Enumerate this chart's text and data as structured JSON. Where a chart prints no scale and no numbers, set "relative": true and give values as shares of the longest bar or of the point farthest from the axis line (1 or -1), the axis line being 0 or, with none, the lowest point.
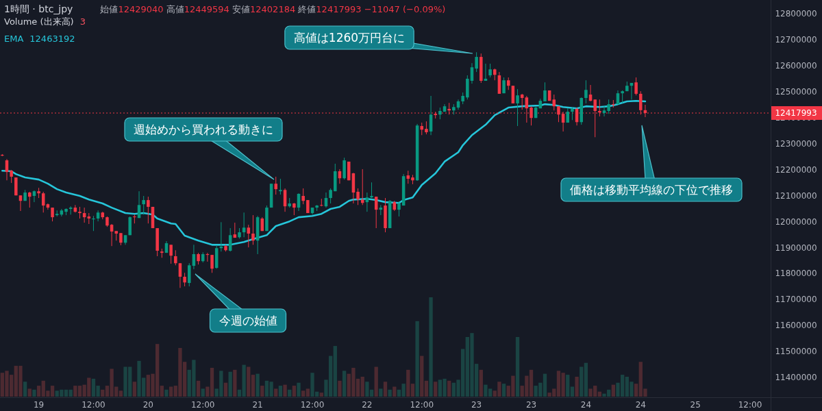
{
  "chart_data": [
    {
      "type": "candlestick",
      "title": "1時間 · btc_jpy",
      "subtitle": "始値12429040 高値12449594 安値12402184 終値12417993 −11047 (−0.09%)",
      "legend": "top left",
      "ylim": [
        11324000,
        12853000
      ],
      "yticks": [
        11400000,
        11500000,
        11600000,
        11700000,
        11800000,
        11900000,
        12000000,
        12100000,
        12200000,
        12300000,
        12400000,
        12500000,
        12600000,
        12700000,
        12800000
      ],
      "categories": [
        null,
        null,
        null,
        null,
        null,
        null,
        null,
        null,
        "19",
        null,
        null,
        null,
        null,
        null,
        null,
        null,
        null,
        null,
        null,
        null,
        "12:00",
        null,
        null,
        null,
        null,
        null,
        null,
        null,
        null,
        null,
        null,
        null,
        "20",
        null,
        null,
        null,
        null,
        null,
        null,
        null,
        null,
        null,
        null,
        null,
        "12:00",
        null,
        null,
        null,
        null,
        null,
        null,
        null,
        null,
        null,
        null,
        null,
        "21",
        null,
        null,
        null,
        null,
        null,
        null,
        null,
        null,
        null,
        null,
        null,
        "12:00",
        null,
        null,
        null,
        null,
        null,
        null,
        null,
        null,
        null,
        null,
        null,
        "22",
        null,
        null,
        null,
        null,
        null,
        null,
        null,
        null,
        null,
        null,
        null,
        "12:00",
        null,
        null,
        null,
        null,
        null,
        null,
        null,
        null,
        null,
        null,
        null,
        "23",
        null,
        null,
        null,
        null,
        null,
        null,
        null,
        null,
        null,
        null,
        null,
        "23",
        null,
        null,
        null,
        null,
        null,
        null,
        null,
        null,
        null,
        null,
        null,
        "24",
        null,
        null,
        null,
        null,
        null,
        null,
        null,
        null,
        null,
        null,
        null,
        "24",
        null,
        null,
        null,
        null,
        null,
        null,
        null,
        null,
        null,
        null,
        null,
        "25",
        null,
        null,
        null,
        null,
        null,
        null,
        null,
        null,
        null,
        null,
        null,
        "12:00",
        null,
        null,
        null,
        null
      ],
      "ohlc": [
        [
          12257000,
          12260000,
          12252000,
          12254000
        ],
        [
          12236000,
          12241000,
          12159000,
          12191000
        ],
        [
          12196000,
          12199000,
          12149000,
          12173000
        ],
        [
          12170000,
          12170000,
          12101000,
          12101000
        ],
        [
          12101000,
          12101000,
          12041000,
          12080000
        ],
        [
          12080000,
          12122000,
          12080000,
          12112000
        ],
        [
          12112000,
          12115000,
          12054000,
          12096000
        ],
        [
          12099000,
          12120000,
          12075000,
          12117000
        ],
        [
          12117000,
          12130000,
          12091000,
          12109000
        ],
        [
          12109000,
          12115000,
          12035000,
          12062000
        ],
        [
          12067000,
          12070000,
          12046000,
          12054000
        ],
        [
          12054000,
          12054000,
          12001000,
          12017000
        ],
        [
          12025000,
          12043000,
          12020000,
          12030000
        ],
        [
          12027000,
          12049000,
          12020000,
          12043000
        ],
        [
          12038000,
          12051000,
          12025000,
          12049000
        ],
        [
          12049000,
          12059000,
          12027000,
          12054000
        ],
        [
          12054000,
          12064000,
          12035000,
          12038000
        ],
        [
          12038000,
          12057000,
          12012000,
          12033000
        ],
        [
          12033000,
          12054000,
          11996000,
          12017000
        ],
        [
          12020000,
          12033000,
          11991000,
          12012000
        ],
        [
          12009000,
          12022000,
          11964000,
          12012000
        ],
        [
          12012000,
          12043000,
          12001000,
          12035000
        ],
        [
          12035000,
          12038000,
          12009000,
          12017000
        ],
        [
          12017000,
          12020000,
          11980000,
          11985000
        ],
        [
          11988000,
          11991000,
          11906000,
          11962000
        ],
        [
          11964000,
          11964000,
          11927000,
          11954000
        ],
        [
          11956000,
          11956000,
          11909000,
          11919000
        ],
        [
          11919000,
          11948000,
          11911000,
          11948000
        ],
        [
          11948000,
          12020000,
          11948000,
          12017000
        ],
        [
          12020000,
          12027000,
          11993000,
          12017000
        ],
        [
          12014000,
          12117000,
          12014000,
          12064000
        ],
        [
          12067000,
          12099000,
          12027000,
          12083000
        ],
        [
          12083000,
          12096000,
          11993000,
          12057000
        ],
        [
          12057000,
          12057000,
          11975000,
          11975000
        ],
        [
          11975000,
          11975000,
          11867000,
          11888000
        ],
        [
          11885000,
          11896000,
          11861000,
          11880000
        ],
        [
          11880000,
          11925000,
          11880000,
          11917000
        ],
        [
          11911000,
          11911000,
          11838000,
          11869000
        ],
        [
          11867000,
          11890000,
          11832000,
          11840000
        ],
        [
          11840000,
          11840000,
          11745000,
          11788000
        ],
        [
          11788000,
          11803000,
          11751000,
          11766000
        ],
        [
          11764000,
          11840000,
          11751000,
          11832000
        ],
        [
          11830000,
          11911000,
          11817000,
          11875000
        ],
        [
          11875000,
          11880000,
          11835000,
          11848000
        ],
        [
          11848000,
          11882000,
          11843000,
          11875000
        ],
        [
          11875000,
          11880000,
          11846000,
          11872000
        ],
        [
          11872000,
          11872000,
          11803000,
          11819000
        ],
        [
          11822000,
          11909000,
          11819000,
          11898000
        ],
        [
          11898000,
          11998000,
          11885000,
          11904000
        ],
        [
          11906000,
          11911000,
          11885000,
          11890000
        ],
        [
          11888000,
          11975000,
          11885000,
          11948000
        ],
        [
          11951000,
          11996000,
          11938000,
          11938000
        ],
        [
          11940000,
          11975000,
          11935000,
          11959000
        ],
        [
          11959000,
          12035000,
          11940000,
          11977000
        ],
        [
          11977000,
          11988000,
          11901000,
          11954000
        ],
        [
          11954000,
          12025000,
          11911000,
          11927000
        ],
        [
          11927000,
          12022000,
          11875000,
          12017000
        ],
        [
          12012000,
          12017000,
          11964000,
          11964000
        ],
        [
          11964000,
          12062000,
          11964000,
          12054000
        ],
        [
          12054000,
          12146000,
          12054000,
          12146000
        ],
        [
          12146000,
          12173000,
          12104000,
          12125000
        ],
        [
          12117000,
          12165000,
          12104000,
          12122000
        ],
        [
          12122000,
          12128000,
          12038000,
          12059000
        ],
        [
          12059000,
          12091000,
          12054000,
          12070000
        ],
        [
          12070000,
          12072000,
          12025000,
          12054000
        ],
        [
          12054000,
          12109000,
          12041000,
          12107000
        ],
        [
          12099000,
          12128000,
          12067000,
          12080000
        ],
        [
          12083000,
          12083000,
          12033000,
          12033000
        ],
        [
          12033000,
          12054000,
          12027000,
          12054000
        ],
        [
          12054000,
          12064000,
          12041000,
          12062000
        ],
        [
          12064000,
          12088000,
          12059000,
          12062000
        ],
        [
          12059000,
          12112000,
          12054000,
          12091000
        ],
        [
          12091000,
          12128000,
          12070000,
          12122000
        ],
        [
          12117000,
          12223000,
          12117000,
          12194000
        ],
        [
          12194000,
          12202000,
          12146000,
          12167000
        ],
        [
          12167000,
          12246000,
          12162000,
          12236000
        ],
        [
          12231000,
          12231000,
          12159000,
          12159000
        ],
        [
          12186000,
          12188000,
          12070000,
          12112000
        ],
        [
          12115000,
          12128000,
          12064000,
          12085000
        ],
        [
          12085000,
          12202000,
          12064000,
          12072000
        ],
        [
          12075000,
          12112000,
          12038000,
          12093000
        ],
        [
          12093000,
          12151000,
          12091000,
          12099000
        ],
        [
          12096000,
          12096000,
          11975000,
          12046000
        ],
        [
          12046000,
          12064000,
          12025000,
          12054000
        ],
        [
          12062000,
          12091000,
          11959000,
          11975000
        ],
        [
          11975000,
          12083000,
          11975000,
          12080000
        ],
        [
          12075000,
          12080000,
          12041000,
          12046000
        ],
        [
          12046000,
          12078000,
          12020000,
          12070000
        ],
        [
          12062000,
          12183000,
          12062000,
          12175000
        ],
        [
          12178000,
          12196000,
          12146000,
          12165000
        ],
        [
          12170000,
          12180000,
          12144000,
          12159000
        ],
        [
          12159000,
          12376000,
          12157000,
          12370000
        ],
        [
          12368000,
          12381000,
          12333000,
          12354000
        ],
        [
          12357000,
          12386000,
          12336000,
          12344000
        ],
        [
          12347000,
          12484000,
          12333000,
          12412000
        ],
        [
          12415000,
          12423000,
          12397000,
          12410000
        ],
        [
          12412000,
          12439000,
          12394000,
          12426000
        ],
        [
          12423000,
          12452000,
          12423000,
          12444000
        ],
        [
          12434000,
          12457000,
          12412000,
          12428000
        ],
        [
          12428000,
          12452000,
          12412000,
          12441000
        ],
        [
          12439000,
          12470000,
          12431000,
          12463000
        ],
        [
          12463000,
          12497000,
          12452000,
          12484000
        ],
        [
          12478000,
          12563000,
          12470000,
          12550000
        ],
        [
          12542000,
          12610000,
          12531000,
          12594000
        ],
        [
          12589000,
          12652000,
          12576000,
          12634000
        ],
        [
          12634000,
          12647000,
          12534000,
          12542000
        ],
        [
          12542000,
          12608000,
          12542000,
          12550000
        ],
        [
          12563000,
          12608000,
          12555000,
          12586000
        ],
        [
          12586000,
          12589000,
          12544000,
          12565000
        ],
        [
          12563000,
          12576000,
          12492000,
          12492000
        ],
        [
          12494000,
          12555000,
          12494000,
          12544000
        ],
        [
          12544000,
          12555000,
          12507000,
          12523000
        ],
        [
          12523000,
          12523000,
          12455000,
          12455000
        ],
        [
          12455000,
          12510000,
          12368000,
          12486000
        ],
        [
          12489000,
          12492000,
          12431000,
          12476000
        ],
        [
          12478000,
          12484000,
          12381000,
          12436000
        ],
        [
          12439000,
          12444000,
          12370000,
          12399000
        ],
        [
          12399000,
          12444000,
          12399000,
          12439000
        ],
        [
          12436000,
          12473000,
          12436000,
          12465000
        ],
        [
          12463000,
          12536000,
          12463000,
          12505000
        ],
        [
          12505000,
          12505000,
          12465000,
          12465000
        ],
        [
          12470000,
          12489000,
          12428000,
          12444000
        ],
        [
          12444000,
          12444000,
          12383000,
          12412000
        ],
        [
          12415000,
          12423000,
          12347000,
          12381000
        ],
        [
          12381000,
          12436000,
          12381000,
          12423000
        ],
        [
          12423000,
          12439000,
          12391000,
          12434000
        ],
        [
          12434000,
          12439000,
          12370000,
          12383000
        ],
        [
          12383000,
          12478000,
          12373000,
          12476000
        ],
        [
          12476000,
          12544000,
          12455000,
          12507000
        ],
        [
          12489000,
          12526000,
          12463000,
          12465000
        ],
        [
          12470000,
          12470000,
          12325000,
          12426000
        ],
        [
          12426000,
          12470000,
          12405000,
          12420000
        ],
        [
          12418000,
          12444000,
          12405000,
          12428000
        ],
        [
          12426000,
          12470000,
          12415000,
          12452000
        ],
        [
          12452000,
          12468000,
          12439000,
          12449000
        ],
        [
          12452000,
          12505000,
          12452000,
          12494000
        ],
        [
          12494000,
          12505000,
          12457000,
          12502000
        ],
        [
          12502000,
          12539000,
          12502000,
          12523000
        ],
        [
          12523000,
          12534000,
          12470000,
          12534000
        ],
        [
          12536000,
          12555000,
          12486000,
          12492000
        ],
        [
          12492000,
          12502000,
          12412000,
          12429000
        ],
        [
          12429040,
          12449594,
          12402184,
          12417993
        ],
        null,
        null,
        null,
        null,
        null,
        null,
        null,
        null,
        null,
        null,
        null,
        null,
        null,
        null,
        null,
        null,
        null,
        null,
        null,
        null,
        null,
        null,
        null,
        null,
        null,
        null,
        null
      ],
      "colors": [
        "#f23645",
        "#f23645",
        "#f23645",
        "#f23645",
        "#f23645",
        "#089981",
        "#f23645",
        "#089981",
        "#f23645",
        "#f23645",
        "#f23645",
        "#f23645",
        "#089981",
        "#089981",
        "#089981",
        "#089981",
        "#f23645",
        "#f23645",
        "#f23645",
        "#f23645",
        "#089981",
        "#089981",
        "#f23645",
        "#f23645",
        "#f23645",
        "#f23645",
        "#f23645",
        "#089981",
        "#089981",
        "#f23645",
        "#089981",
        "#089981",
        "#f23645",
        "#f23645",
        "#f23645",
        "#f23645",
        "#089981",
        "#f23645",
        "#f23645",
        "#f23645",
        "#f23645",
        "#089981",
        "#089981",
        "#f23645",
        "#089981",
        "#f23645",
        "#f23645",
        "#089981",
        "#089981",
        "#f23645",
        "#089981",
        "#f23645",
        "#089981",
        "#089981",
        "#f23645",
        "#f23645",
        "#089981",
        "#f23645",
        "#089981",
        "#089981",
        "#f23645",
        "#089981",
        "#f23645",
        "#089981",
        "#f23645",
        "#089981",
        "#f23645",
        "#f23645",
        "#089981",
        "#089981",
        "#f23645",
        "#089981",
        "#089981",
        "#089981",
        "#f23645",
        "#089981",
        "#f23645",
        "#f23645",
        "#f23645",
        "#f23645",
        "#089981",
        "#089981",
        "#f23645",
        "#089981",
        "#f23645",
        "#089981",
        "#f23645",
        "#089981",
        "#089981",
        "#f23645",
        "#f23645",
        "#089981",
        "#f23645",
        "#f23645",
        "#089981",
        "#f23645",
        "#089981",
        "#089981",
        "#f23645",
        "#089981",
        "#089981",
        "#089981",
        "#089981",
        "#089981",
        "#089981",
        "#f23645",
        "#089981",
        "#089981",
        "#f23645",
        "#f23645",
        "#089981",
        "#f23645",
        "#f23645",
        "#089981",
        "#f23645",
        "#f23645",
        "#f23645",
        "#089981",
        "#089981",
        "#089981",
        "#f23645",
        "#f23645",
        "#f23645",
        "#f23645",
        "#089981",
        "#089981",
        "#f23645",
        "#089981",
        "#089981",
        "#f23645",
        "#f23645",
        "#f23645",
        "#089981",
        "#089981",
        "#f23645",
        "#089981",
        "#089981",
        "#089981",
        "#089981",
        "#f23645",
        "#f23645",
        "#f23645",
        null,
        null,
        null,
        null,
        null,
        null,
        null,
        null,
        null,
        null,
        null,
        null,
        null,
        null,
        null,
        null,
        null,
        null,
        null,
        null,
        null,
        null,
        null,
        null,
        null,
        null,
        null
      ],
      "series": [
        {
          "type": "line",
          "name": "EMA",
          "color": "#26c6da",
          "values": [
            12196000,
            null,
            12194000,
            12183000,
            null,
            12170000,
            null,
            null,
            12162000,
            null,
            12146000,
            null,
            12125000,
            null,
            12112000,
            null,
            null,
            12099000,
            null,
            12085000,
            null,
            null,
            12070000,
            null,
            12054000,
            null,
            null,
            12033000,
            null,
            12030000,
            null,
            12033000,
            null,
            12027000,
            12012000,
            null,
            null,
            11993000,
            11991000,
            null,
            11946000,
            null,
            null,
            11927000,
            null,
            null,
            11911000,
            null,
            11911000,
            null,
            11911000,
            null,
            null,
            11922000,
            null,
            11933000,
            null,
            null,
            11948000,
            null,
            11983000,
            null,
            null,
            12001000,
            null,
            12017000,
            null,
            null,
            12022000,
            null,
            12030000,
            null,
            12049000,
            null,
            12057000,
            null,
            12080000,
            12085000,
            null,
            null,
            12088000,
            null,
            12083000,
            null,
            12075000,
            null,
            null,
            12072000,
            12083000,
            null,
            12093000,
            null,
            12141000,
            null,
            null,
            12186000,
            null,
            12231000,
            null,
            null,
            12267000,
            12294000,
            null,
            12333000,
            null,
            null,
            12373000,
            null,
            12410000,
            null,
            null,
            12439000,
            null,
            null,
            12444000,
            null,
            null,
            null,
            12447000,
            12452000,
            null,
            12449000,
            null,
            12441000,
            null,
            null,
            12436000,
            null,
            12444000,
            null,
            null,
            12441000,
            null,
            12444000,
            null,
            12452000,
            null,
            12463000,
            null,
            12465000,
            null,
            12463000,
            null,
            null,
            null,
            null,
            null,
            null,
            null,
            null,
            null,
            null,
            null,
            null,
            null,
            null,
            null,
            null,
            null,
            null,
            null,
            null,
            null,
            null,
            null,
            null,
            null,
            null,
            null
          ]
        }
      ],
      "ref_lines": [
        {
          "axis": "y",
          "value": 12417993,
          "label": "12417993",
          "color": "#f23645",
          "line_style": "dotted"
        }
      ],
      "annotations": [
        "12463192",
        "高値は1260万円台に",
        "週始めから買われる動きに",
        "今週の始値",
        "価格は移動平均線の下位で推移"
      ]
    },
    {
      "type": "bar",
      "relative": true,
      "legend": "top left",
      "categories": [
        null,
        null,
        null,
        null,
        null,
        null,
        null,
        null,
        null,
        null,
        null,
        null,
        null,
        null,
        null,
        null,
        null,
        null,
        null,
        null,
        null,
        null,
        null,
        null,
        null,
        null,
        null,
        null,
        null,
        null,
        null,
        null,
        null,
        null,
        null,
        null,
        null,
        null,
        null,
        null,
        null,
        null,
        null,
        null,
        null,
        null,
        null,
        null,
        null,
        null,
        null,
        null,
        null,
        null,
        null,
        null,
        null,
        null,
        null,
        null,
        null,
        null,
        null,
        null,
        null,
        null,
        null,
        null,
        null,
        null,
        null,
        null,
        null,
        null,
        null,
        null,
        null,
        null,
        null,
        null,
        null,
        null,
        null,
        null,
        null,
        null,
        null,
        null,
        null,
        null,
        null,
        null,
        null,
        null,
        null,
        null,
        null,
        null,
        null,
        null,
        null,
        null,
        null,
        null,
        null,
        null,
        null,
        null,
        null,
        null,
        null,
        null,
        null,
        null,
        null,
        null,
        null,
        null,
        null,
        null,
        null,
        null,
        null,
        null,
        null,
        null,
        null,
        null,
        null,
        null,
        null,
        null,
        null,
        null,
        null,
        null,
        null,
        null,
        null,
        null,
        null,
        null,
        null,
        null,
        null,
        null,
        null,
        null,
        null,
        null,
        null,
        null,
        null,
        null,
        null,
        null,
        null,
        null,
        null,
        null,
        null,
        null,
        null,
        null,
        null,
        null,
        null,
        null,
        null
      ],
      "series": [
        {
          "name": "Volume (出来高)",
          "values": [
            0.24,
            0.26,
            0.22,
            0.31,
            0.31,
            0.15,
            0.08,
            0.07,
            0.11,
            0.16,
            0.06,
            0.11,
            0.06,
            0.07,
            0.07,
            0.07,
            0.11,
            0.11,
            0.12,
            0.19,
            0.18,
            0.11,
            0.07,
            0.11,
            0.28,
            0.1,
            0.06,
            0.3,
            0.3,
            0.15,
            0.36,
            0.19,
            0.22,
            0.23,
            0.53,
            0.11,
            0.07,
            0.1,
            0.11,
            0.49,
            0.35,
            0.27,
            0.37,
            0.16,
            0.08,
            0.1,
            0.29,
            0.08,
            0.26,
            0.14,
            0.25,
            0.27,
            0.07,
            0.32,
            0.3,
            0.22,
            0.23,
            0.11,
            0.16,
            0.15,
            0.08,
            0.11,
            0.12,
            0.07,
            0.11,
            0.14,
            0.06,
            0.08,
            0.24,
            0.05,
            0.04,
            0.17,
            0.41,
            0.51,
            0.16,
            0.26,
            0.23,
            0.29,
            0.18,
            0.2,
            0.15,
            0.07,
            0.3,
            0.08,
            0.15,
            0.07,
            0.1,
            0.07,
            0.13,
            0.27,
            0.13,
            0.76,
            0.41,
            0.16,
            1,
            0.15,
            0.17,
            0.18,
            0.16,
            0.14,
            0.17,
            0.48,
            0.6,
            0.64,
            0.33,
            0.27,
            0.12,
            0.08,
            0.06,
            0.15,
            0.13,
            0.11,
            0.21,
            0.6,
            0.11,
            0.21,
            0.27,
            0.11,
            0.14,
            0.23,
            0.04,
            0.08,
            0.26,
            0.24,
            0.22,
            0.1,
            0.2,
            0.3,
            0.34,
            0.08,
            0.11,
            0.05,
            0.03,
            0.07,
            0.12,
            0.14,
            0.22,
            0.2,
            0.15,
            0.13,
            0.35,
            0.08,
            null,
            null,
            null,
            null,
            null,
            null,
            null,
            null,
            null,
            null,
            null,
            null,
            null,
            null,
            null,
            null,
            null,
            null,
            null,
            null,
            null,
            null,
            null,
            null,
            null,
            null,
            null
          ],
          "colors": [
            "#4d2a31",
            "#4d2a31",
            "#4d2a31",
            "#4d2a31",
            "#4d2a31",
            "#1a4443",
            "#4d2a31",
            "#1a4443",
            "#4d2a31",
            "#4d2a31",
            "#4d2a31",
            "#4d2a31",
            "#1a4443",
            "#1a4443",
            "#1a4443",
            "#1a4443",
            "#4d2a31",
            "#4d2a31",
            "#4d2a31",
            "#4d2a31",
            "#1a4443",
            "#1a4443",
            "#4d2a31",
            "#4d2a31",
            "#4d2a31",
            "#4d2a31",
            "#4d2a31",
            "#1a4443",
            "#1a4443",
            "#4d2a31",
            "#1a4443",
            "#1a4443",
            "#4d2a31",
            "#4d2a31",
            "#4d2a31",
            "#4d2a31",
            "#1a4443",
            "#4d2a31",
            "#4d2a31",
            "#4d2a31",
            "#4d2a31",
            "#1a4443",
            "#1a4443",
            "#4d2a31",
            "#1a4443",
            "#4d2a31",
            "#4d2a31",
            "#1a4443",
            "#1a4443",
            "#4d2a31",
            "#1a4443",
            "#4d2a31",
            "#1a4443",
            "#1a4443",
            "#4d2a31",
            "#4d2a31",
            "#1a4443",
            "#4d2a31",
            "#1a4443",
            "#1a4443",
            "#4d2a31",
            "#1a4443",
            "#4d2a31",
            "#1a4443",
            "#4d2a31",
            "#1a4443",
            "#4d2a31",
            "#4d2a31",
            "#1a4443",
            "#1a4443",
            "#4d2a31",
            "#1a4443",
            "#1a4443",
            "#1a4443",
            "#4d2a31",
            "#1a4443",
            "#4d2a31",
            "#4d2a31",
            "#4d2a31",
            "#4d2a31",
            "#1a4443",
            "#1a4443",
            "#4d2a31",
            "#1a4443",
            "#4d2a31",
            "#1a4443",
            "#4d2a31",
            "#1a4443",
            "#1a4443",
            "#4d2a31",
            "#4d2a31",
            "#1a4443",
            "#4d2a31",
            "#4d2a31",
            "#1a4443",
            "#4d2a31",
            "#1a4443",
            "#1a4443",
            "#4d2a31",
            "#1a4443",
            "#1a4443",
            "#1a4443",
            "#1a4443",
            "#1a4443",
            "#1a4443",
            "#4d2a31",
            "#1a4443",
            "#1a4443",
            "#4d2a31",
            "#4d2a31",
            "#1a4443",
            "#4d2a31",
            "#4d2a31",
            "#1a4443",
            "#4d2a31",
            "#4d2a31",
            "#4d2a31",
            "#1a4443",
            "#1a4443",
            "#1a4443",
            "#4d2a31",
            "#4d2a31",
            "#4d2a31",
            "#4d2a31",
            "#1a4443",
            "#1a4443",
            "#4d2a31",
            "#1a4443",
            "#1a4443",
            "#4d2a31",
            "#4d2a31",
            "#4d2a31",
            "#1a4443",
            "#1a4443",
            "#4d2a31",
            "#1a4443",
            "#1a4443",
            "#1a4443",
            "#1a4443",
            "#4d2a31",
            "#4d2a31",
            "#4d2a31",
            null,
            null,
            null,
            null,
            null,
            null,
            null,
            null,
            null,
            null,
            null,
            null,
            null,
            null,
            null,
            null,
            null,
            null,
            null,
            null,
            null,
            null,
            null,
            null,
            null,
            null,
            null
          ]
        }
      ],
      "annotations": [
        "3"
      ]
    }
  ]
}
